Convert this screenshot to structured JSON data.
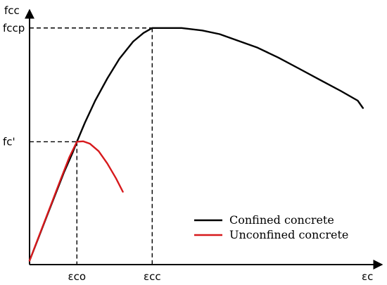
{
  "chart_data": {
    "type": "line",
    "title": "",
    "xlabel": "εc",
    "ylabel": "fcc",
    "xlim": [
      0,
      1.0
    ],
    "ylim": [
      0,
      1.0
    ],
    "grid": false,
    "legend_position": "bottom-right",
    "x_tick_labels": [
      {
        "text": "εco",
        "x": 0.137
      },
      {
        "text": "εcc",
        "x": 0.355
      }
    ],
    "y_tick_labels": [
      {
        "text": "fccp",
        "y": 0.955
      },
      {
        "text": "fc'",
        "y": 0.493
      }
    ],
    "reference_lines": [
      {
        "name": "εco-fc'",
        "x": 0.137,
        "y": 0.493
      },
      {
        "name": "εcc-fccp",
        "x": 0.355,
        "y": 0.955
      }
    ],
    "series": [
      {
        "name": "Confined concrete",
        "color": "#000000",
        "x": [
          0,
          0.025,
          0.05,
          0.075,
          0.1,
          0.125,
          0.137,
          0.16,
          0.19,
          0.225,
          0.26,
          0.3,
          0.33,
          0.355,
          0.38,
          0.44,
          0.5,
          0.55,
          0.6,
          0.66,
          0.72,
          0.78,
          0.84,
          0.9,
          0.95,
          0.965
        ],
        "y": [
          0.01,
          0.1,
          0.19,
          0.28,
          0.37,
          0.45,
          0.493,
          0.57,
          0.66,
          0.75,
          0.83,
          0.9,
          0.935,
          0.955,
          0.955,
          0.955,
          0.945,
          0.93,
          0.905,
          0.875,
          0.835,
          0.79,
          0.745,
          0.7,
          0.66,
          0.63
        ]
      },
      {
        "name": "Unconfined concrete",
        "color": "#d7191c",
        "x": [
          0,
          0.03,
          0.06,
          0.09,
          0.115,
          0.137,
          0.155,
          0.175,
          0.2,
          0.225,
          0.25,
          0.27
        ],
        "y": [
          0.01,
          0.12,
          0.23,
          0.34,
          0.43,
          0.493,
          0.495,
          0.485,
          0.455,
          0.405,
          0.345,
          0.29
        ]
      }
    ]
  }
}
